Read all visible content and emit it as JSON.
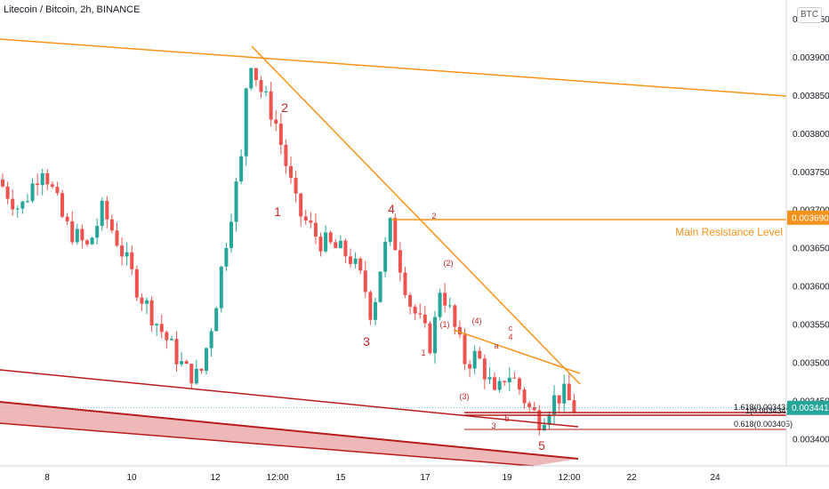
{
  "title": "Litecoin / Bitcoin, 2h, BINANCE",
  "currency_badge": "BTC",
  "colors": {
    "up": "#26a69a",
    "down": "#ef5350",
    "orange": "#f7931a",
    "red_line": "#b71c1c",
    "wave_label": "#c62828",
    "channel_fill": "#e8a0a0"
  },
  "chart_data": {
    "type": "candlestick",
    "symbol": "Litecoin / Bitcoin",
    "interval": "2h",
    "exchange": "BINANCE",
    "x_ticks": [
      "8",
      "10",
      "12",
      "12:00",
      "15",
      "17",
      "19",
      "12:00",
      "22",
      "24"
    ],
    "y_ticks": [
      "0.003400",
      "0.003450",
      "0.003500",
      "0.003550",
      "0.003600",
      "0.003650",
      "0.003700",
      "0.003750",
      "0.003800",
      "0.003850",
      "0.003900",
      "0.003950"
    ],
    "ylim": [
      0.003365,
      0.003975
    ],
    "price_tags": [
      {
        "value": 0.00369,
        "label": "0.003690",
        "color": "#f7931a"
      },
      {
        "value": 0.003441,
        "label": "0.003441",
        "color": "#26a69a"
      }
    ],
    "annotations": {
      "main_resistance": {
        "text": "Main Resistance Level",
        "price": 0.00369
      },
      "fib_1618": "1.618(0.003439)",
      "fib_1618b": "1(0.003434)",
      "fib_0618": "0.618(0.003405)",
      "wave_labels_large": [
        "2",
        "1",
        "4",
        "3",
        "5"
      ],
      "wave_labels_small": [
        "2",
        "(2)",
        "(1)",
        "1",
        "(4)",
        "(3)",
        "a",
        "c",
        "4",
        "b",
        "3"
      ]
    },
    "series": [
      {
        "name": "",
        "type": "ohlc",
        "price_path": [
          [
            0,
            0.00374
          ],
          [
            3,
            0.0037
          ],
          [
            6,
            0.00376
          ],
          [
            9,
            0.00368
          ],
          [
            12,
            0.00365
          ],
          [
            14,
            0.0037
          ],
          [
            16,
            0.00366
          ],
          [
            19,
            0.00359
          ],
          [
            22,
            0.00354
          ],
          [
            25,
            0.00349
          ],
          [
            27,
            0.00348
          ],
          [
            29,
            0.00357
          ],
          [
            31,
            0.00369
          ],
          [
            32.5,
            0.00376
          ],
          [
            33.5,
            0.00391
          ],
          [
            35,
            0.00386
          ],
          [
            37,
            0.00382
          ],
          [
            38,
            0.00378
          ],
          [
            40,
            0.0037
          ],
          [
            41.5,
            0.00368
          ],
          [
            43,
            0.00366
          ],
          [
            45,
            0.00365
          ],
          [
            47,
            0.00364
          ],
          [
            49,
            0.0036
          ],
          [
            50,
            0.00356
          ],
          [
            51,
            0.00362
          ],
          [
            52.5,
            0.00368
          ],
          [
            53.5,
            0.00364
          ],
          [
            55,
            0.00358
          ],
          [
            56.5,
            0.00355
          ],
          [
            58,
            0.00352
          ],
          [
            59,
            0.0036
          ],
          [
            60,
            0.00358
          ],
          [
            61.5,
            0.00353
          ],
          [
            62.5,
            0.0035
          ],
          [
            64,
            0.00351
          ],
          [
            65.5,
            0.00348
          ],
          [
            66.5,
            0.00345
          ],
          [
            68,
            0.00349
          ],
          [
            69.5,
            0.00347
          ],
          [
            71,
            0.00344
          ],
          [
            72.5,
            0.003425
          ],
          [
            74,
            0.00345
          ],
          [
            75.5,
            0.00346
          ],
          [
            77,
            0.00344
          ]
        ]
      }
    ]
  }
}
